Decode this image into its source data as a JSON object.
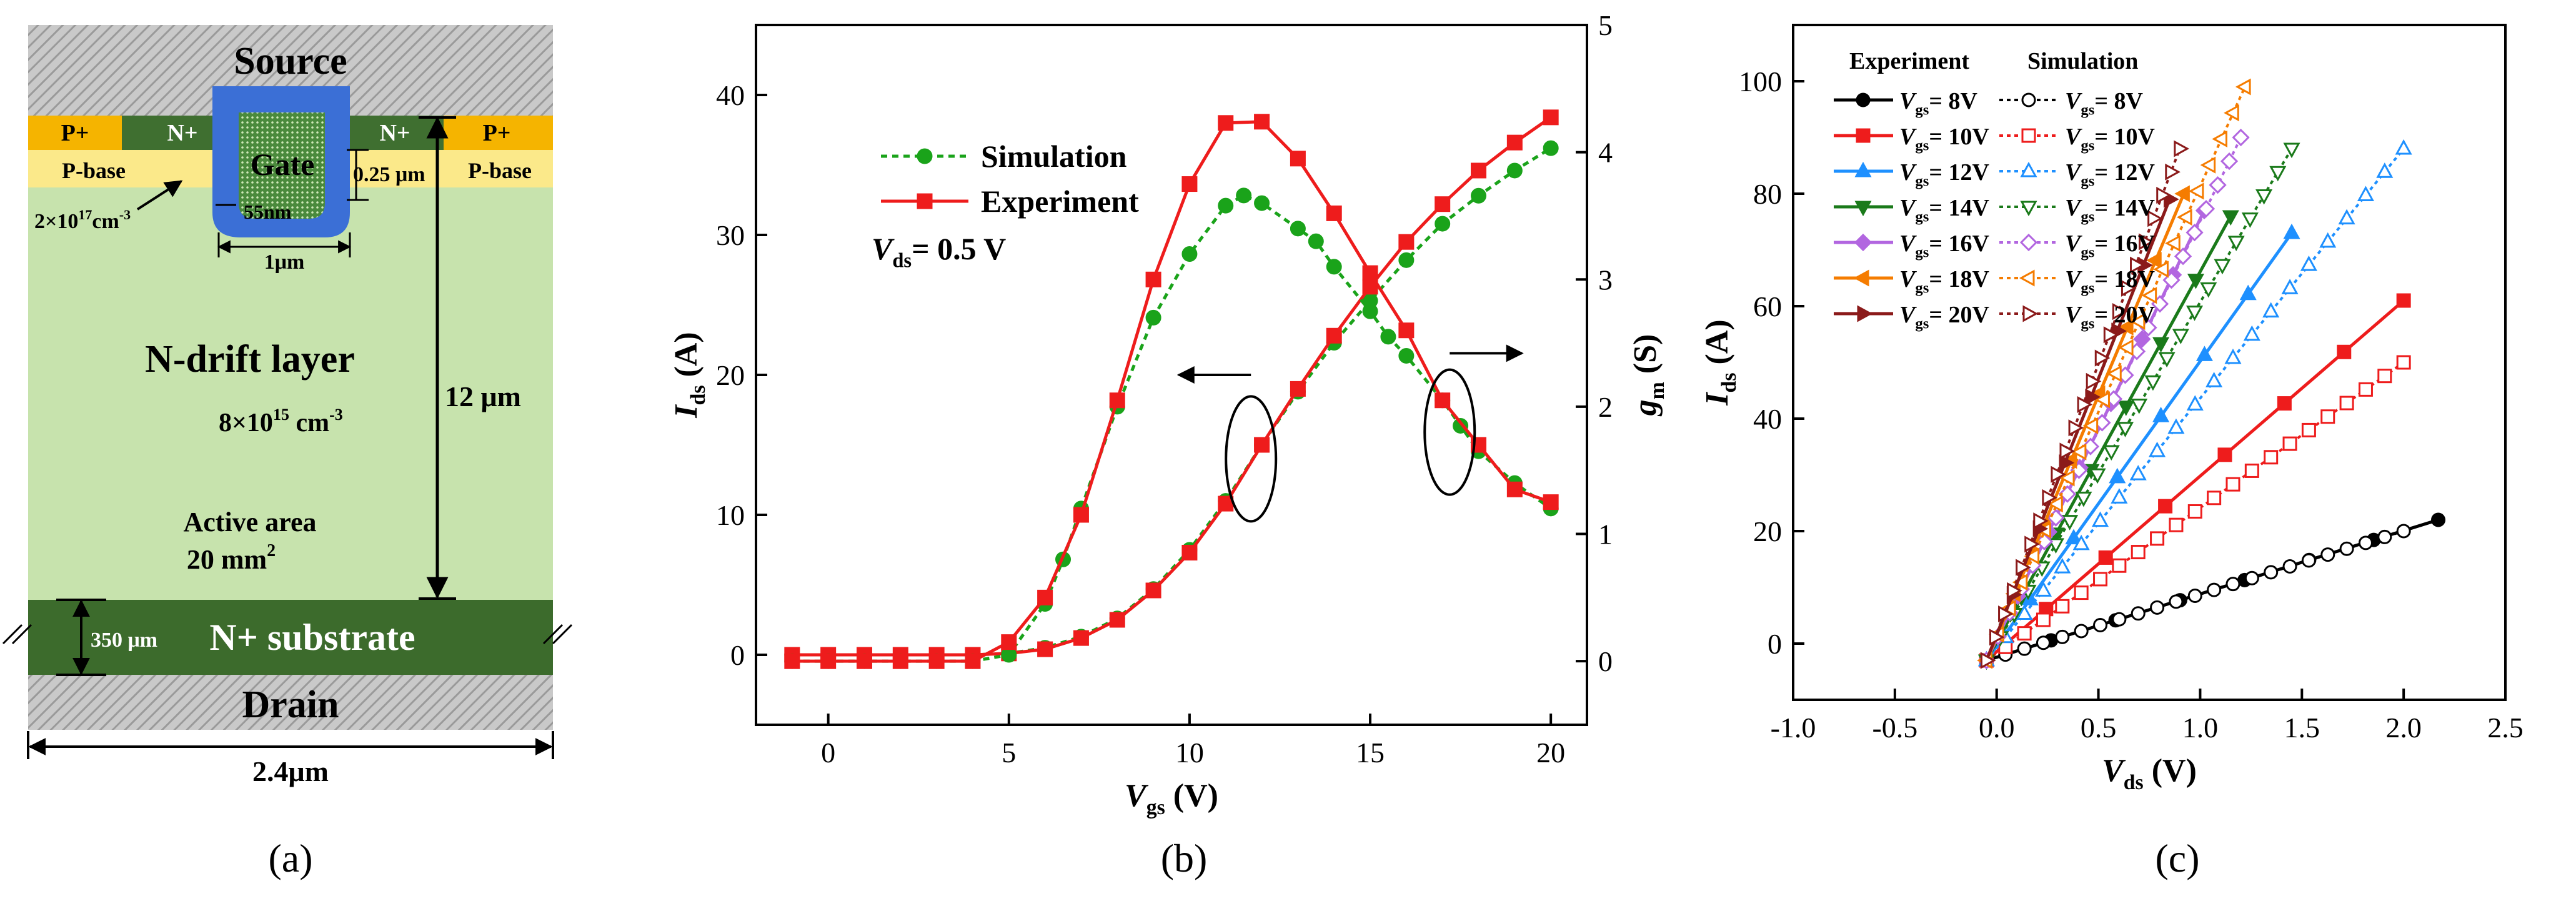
{
  "panels": {
    "a": {
      "caption": "(a)",
      "source_label": "Source",
      "gate_label": "Gate",
      "drain_label": "Drain",
      "pplus_label": "P+",
      "nplus_label": "N+",
      "pbase_label": "P-base",
      "pbase_doping": "2×10",
      "pbase_doping_exp": "17",
      "pbase_doping_unit": "cm",
      "pbase_doping_unit_exp": "-3",
      "oxide_thickness": "55nm",
      "gate_width": "1μm",
      "depth_label": "0.25 μm",
      "drift_label": "N-drift layer",
      "drift_doping": "8×10",
      "drift_doping_exp": "15",
      "drift_doping_unit": " cm",
      "drift_doping_unit_exp": "-3",
      "drift_thickness": "12 μm",
      "active_area_label": "Active area",
      "active_area_value": "20 mm",
      "active_area_exp": "2",
      "substrate_label": "N+ substrate",
      "substrate_thickness": "350 μm",
      "cell_width": "2.4μm",
      "colors": {
        "hatch": "#b4b4b4",
        "pplus": "#f5b400",
        "nplus": "#3f6f30",
        "pbase": "#fbe98a",
        "drift": "#c7e3ad",
        "substrate": "#3c6b2c",
        "gate_poly": "#4a8a3c",
        "oxide": "#3b6fd6"
      }
    },
    "b": {
      "caption": "(b)"
    },
    "c": {
      "caption": "(c)"
    }
  },
  "chart_data": [
    {
      "panel": "b",
      "type": "line",
      "xlabel": "V",
      "xlabel_sub": "gs",
      "xlabel_unit": " (V)",
      "ylabel": "I",
      "ylabel_sub": "ds",
      "ylabel_unit": " (A)",
      "y2label": "g",
      "y2label_sub": "m",
      "y2label_unit": " (S)",
      "xlim": [
        -2,
        21
      ],
      "ylim": [
        -5,
        45
      ],
      "y2lim": [
        -0.5,
        5
      ],
      "xticks": [
        0,
        5,
        10,
        15,
        20
      ],
      "yticks": [
        0,
        10,
        20,
        30,
        40
      ],
      "y2ticks": [
        0,
        1,
        2,
        3,
        4,
        5
      ],
      "annotation": "V",
      "annotation_sub": "ds",
      "annotation_rest": "= 0.5 V",
      "legend": [
        "Simulation",
        "Experiment"
      ],
      "series": [
        {
          "name": "Simulation",
          "axis": "y",
          "color": "#1aa31a",
          "marker": "circle",
          "dash": true,
          "x": [
            -1,
            0,
            1,
            2,
            3,
            4,
            5,
            6,
            7,
            8,
            9,
            10,
            11,
            12,
            13,
            14,
            15,
            16,
            17,
            18,
            19,
            20
          ],
          "y": [
            0,
            0,
            0,
            0,
            0,
            0,
            0.1,
            0.5,
            1.3,
            2.6,
            4.7,
            7.5,
            11.0,
            15.0,
            18.8,
            22.3,
            25.3,
            28.2,
            30.8,
            32.8,
            34.6,
            36.2
          ]
        },
        {
          "name": "Experiment",
          "axis": "y",
          "color": "#ee1c1c",
          "marker": "square",
          "dash": false,
          "x": [
            -1,
            0,
            1,
            2,
            3,
            4,
            5,
            6,
            7,
            8,
            9,
            10,
            11,
            12,
            13,
            14,
            15,
            16,
            17,
            18,
            19,
            20
          ],
          "y": [
            0,
            0,
            0,
            0,
            0,
            0,
            0.1,
            0.4,
            1.2,
            2.5,
            4.6,
            7.3,
            10.8,
            15.0,
            19.0,
            22.8,
            26.3,
            29.5,
            32.2,
            34.6,
            36.6,
            38.4
          ]
        },
        {
          "name": "Simulation",
          "axis": "y2",
          "color": "#1aa31a",
          "marker": "circle",
          "dash": true,
          "x": [
            -1,
            0,
            1,
            2,
            3,
            4,
            5,
            6,
            6.5,
            7,
            8,
            9,
            10,
            11,
            11.5,
            12,
            13,
            13.5,
            14,
            15,
            15.5,
            16,
            17,
            17.5,
            18,
            19,
            20
          ],
          "y": [
            0,
            0,
            0,
            0,
            0,
            0,
            0.05,
            0.45,
            0.8,
            1.2,
            2.0,
            2.7,
            3.2,
            3.58,
            3.66,
            3.6,
            3.4,
            3.3,
            3.1,
            2.75,
            2.55,
            2.4,
            2.05,
            1.85,
            1.65,
            1.4,
            1.2
          ]
        },
        {
          "name": "Experiment",
          "axis": "y2",
          "color": "#ee1c1c",
          "marker": "square",
          "dash": false,
          "x": [
            -1,
            0,
            1,
            2,
            3,
            4,
            5,
            6,
            7,
            8,
            9,
            10,
            11,
            12,
            13,
            14,
            15,
            16,
            17,
            18,
            19,
            20
          ],
          "y": [
            0,
            0,
            0,
            0,
            0,
            0,
            0.15,
            0.5,
            1.15,
            2.05,
            3.0,
            3.75,
            4.23,
            4.24,
            3.95,
            3.52,
            3.05,
            2.6,
            2.05,
            1.7,
            1.35,
            1.25
          ]
        }
      ]
    },
    {
      "panel": "c",
      "type": "scatter",
      "xlabel": "V",
      "xlabel_sub": "ds",
      "xlabel_unit": " (V)",
      "ylabel": "I",
      "ylabel_sub": "ds",
      "ylabel_unit": " (A)",
      "xlim": [
        -1.0,
        2.5
      ],
      "ylim": [
        -10,
        110
      ],
      "xticks": [
        -1.0,
        -0.5,
        0.0,
        0.5,
        1.0,
        1.5,
        2.0,
        2.5
      ],
      "xticklabels": [
        "-1.0",
        "-0.5",
        "0.0",
        "0.5",
        "1.0",
        "1.5",
        "2.0",
        "2.5"
      ],
      "yticks": [
        0,
        20,
        40,
        60,
        80,
        100
      ],
      "legend_title_exp": "Experiment",
      "legend_title_sim": "Simulation",
      "series": [
        {
          "name": "Vgs = 8V",
          "label_main": "V",
          "label_sub": "gs",
          "label_rest": "= 8V",
          "color": "#000000",
          "marker": "circle",
          "exp_x_end": 2.17,
          "exp_y_end": 22,
          "sim_x_end": 2.0,
          "sim_y_end": 20
        },
        {
          "name": "Vgs = 10V",
          "label_main": "V",
          "label_sub": "gs",
          "label_rest": "= 10V",
          "color": "#ee1c1c",
          "marker": "square",
          "exp_x_end": 2.0,
          "exp_y_end": 61,
          "sim_x_end": 2.0,
          "sim_y_end": 50
        },
        {
          "name": "Vgs = 12V",
          "label_main": "V",
          "label_sub": "gs",
          "label_rest": "= 12V",
          "color": "#1e90ff",
          "marker": "triangle-up",
          "exp_x_end": 1.45,
          "exp_y_end": 73,
          "sim_x_end": 2.0,
          "sim_y_end": 88
        },
        {
          "name": "Vgs = 14V",
          "label_main": "V",
          "label_sub": "gs",
          "label_rest": "= 14V",
          "color": "#1a7a1a",
          "marker": "triangle-down",
          "exp_x_end": 1.15,
          "exp_y_end": 76,
          "sim_x_end": 1.45,
          "sim_y_end": 88
        },
        {
          "name": "Vgs = 16V",
          "label_main": "V",
          "label_sub": "gs",
          "label_rest": "= 16V",
          "color": "#b266e0",
          "marker": "diamond",
          "exp_x_end": 1.02,
          "exp_y_end": 77,
          "sim_x_end": 1.2,
          "sim_y_end": 90
        },
        {
          "name": "Vgs = 18V",
          "label_main": "V",
          "label_sub": "gs",
          "label_rest": "= 18V",
          "color": "#f57c00",
          "marker": "triangle-left",
          "exp_x_end": 0.92,
          "exp_y_end": 80,
          "sim_x_end": 1.22,
          "sim_y_end": 99
        },
        {
          "name": "Vgs = 20V",
          "label_main": "V",
          "label_sub": "gs",
          "label_rest": "= 20V",
          "color": "#8b1a1a",
          "marker": "triangle-right",
          "exp_x_end": 0.85,
          "exp_y_end": 79,
          "sim_x_end": 0.9,
          "sim_y_end": 88
        }
      ],
      "x_start": -0.05,
      "y_start": -3
    }
  ]
}
